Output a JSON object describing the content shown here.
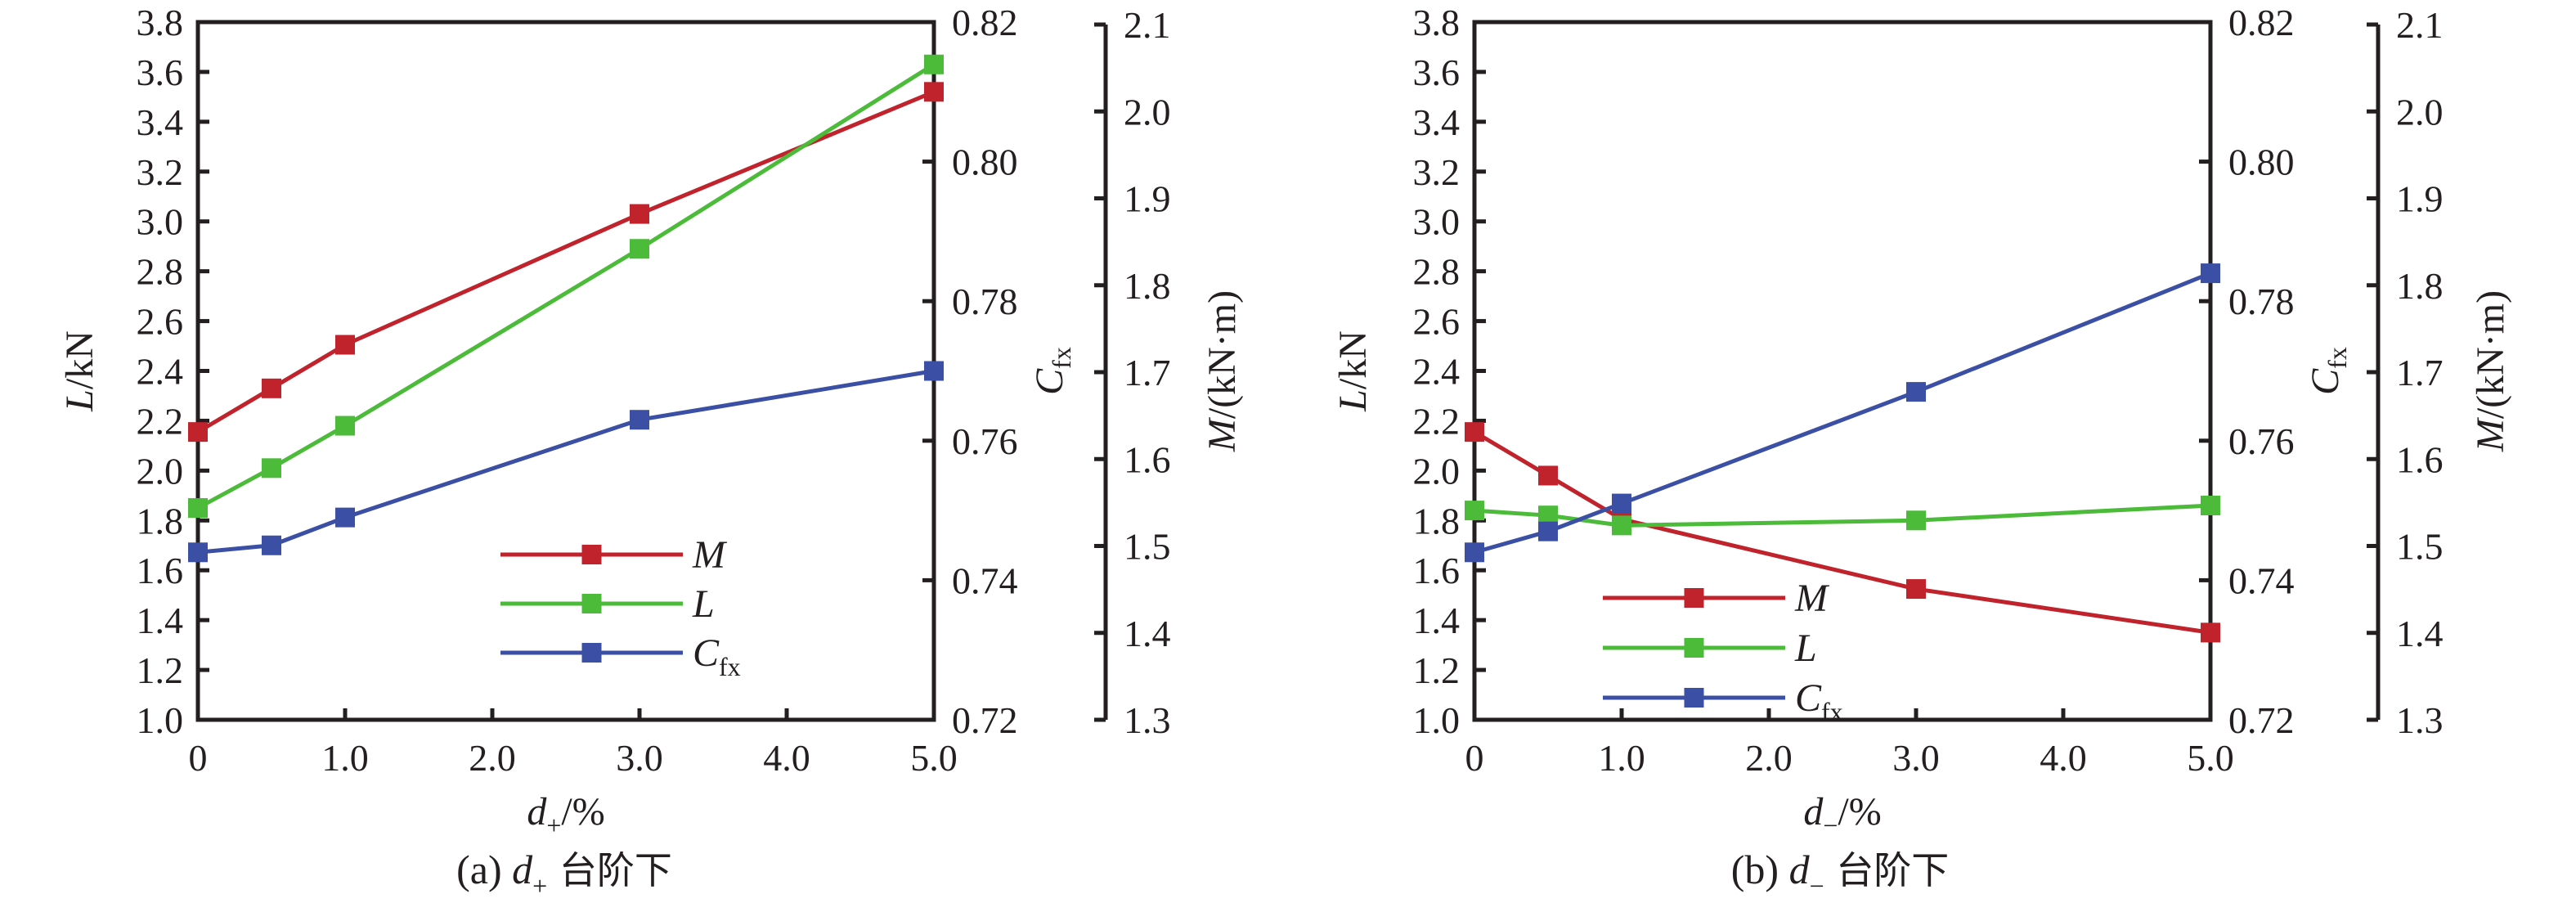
{
  "colors": {
    "M": "#c0232b",
    "L": "#4cbb3a",
    "Cfx": "#3b4fa5",
    "axis": "#231f20"
  },
  "chart_data": [
    {
      "type": "line",
      "panel": "a",
      "caption": {
        "prefix": "(a) ",
        "var": "d",
        "sub": "+",
        "suffix": " 台阶下"
      },
      "xlabel": {
        "var": "d",
        "sub": "+",
        "suffix": "/%"
      },
      "x_ticks": [
        "0",
        "1.0",
        "2.0",
        "3.0",
        "4.0",
        "5.0"
      ],
      "xlim": [
        0,
        5
      ],
      "x": [
        0,
        0.5,
        1.0,
        3.0,
        5.0
      ],
      "axes": {
        "L": {
          "label_var": "L",
          "label_suffix": "/kN",
          "ylim": [
            1.0,
            3.8
          ],
          "ticks": [
            "1.0",
            "1.2",
            "1.4",
            "1.6",
            "1.8",
            "2.0",
            "2.2",
            "2.4",
            "2.6",
            "2.8",
            "3.0",
            "3.2",
            "3.4",
            "3.6",
            "3.8"
          ]
        },
        "Cfx": {
          "label_var": "C",
          "label_sub": "fx",
          "ylim": [
            0.72,
            0.82
          ],
          "ticks": [
            "0.72",
            "0.74",
            "0.76",
            "0.78",
            "0.80",
            "0.82"
          ]
        },
        "M": {
          "label_var": "M",
          "label_suffix": "/(kN·m)",
          "ylim": [
            1.3,
            2.1
          ],
          "ticks": [
            "1.3",
            "1.4",
            "1.5",
            "1.6",
            "1.7",
            "1.8",
            "1.9",
            "2.0",
            "2.1"
          ]
        }
      },
      "series": [
        {
          "name": "M",
          "axis": "M",
          "values": [
            1.63,
            1.68,
            1.73,
            1.88,
            2.02
          ]
        },
        {
          "name": "L",
          "axis": "L",
          "values": [
            1.85,
            2.01,
            2.18,
            2.89,
            3.63
          ]
        },
        {
          "name": "Cfx",
          "axis": "Cfx",
          "values": [
            0.744,
            0.745,
            0.749,
            0.763,
            0.77
          ]
        }
      ],
      "legend": [
        {
          "series": "M",
          "var": "M",
          "sub": ""
        },
        {
          "series": "L",
          "var": "L",
          "sub": ""
        },
        {
          "series": "Cfx",
          "var": "C",
          "sub": "fx"
        }
      ],
      "legend_position": "lower-center"
    },
    {
      "type": "line",
      "panel": "b",
      "caption": {
        "prefix": "(b) ",
        "var": "d",
        "sub": "−",
        "suffix": " 台阶下"
      },
      "xlabel": {
        "var": "d",
        "sub": "−",
        "suffix": "/%"
      },
      "x_ticks": [
        "0",
        "1.0",
        "2.0",
        "3.0",
        "4.0",
        "5.0"
      ],
      "xlim": [
        0,
        5
      ],
      "x": [
        0,
        0.5,
        1.0,
        3.0,
        5.0
      ],
      "axes": {
        "L": {
          "label_var": "L",
          "label_suffix": "/kN",
          "ylim": [
            1.0,
            3.8
          ],
          "ticks": [
            "1.0",
            "1.2",
            "1.4",
            "1.6",
            "1.8",
            "2.0",
            "2.2",
            "2.4",
            "2.6",
            "2.8",
            "3.0",
            "3.2",
            "3.4",
            "3.6",
            "3.8"
          ]
        },
        "Cfx": {
          "label_var": "C",
          "label_sub": "fx",
          "ylim": [
            0.72,
            0.82
          ],
          "ticks": [
            "0.72",
            "0.74",
            "0.76",
            "0.78",
            "0.80",
            "0.82"
          ]
        },
        "M": {
          "label_var": "M",
          "label_suffix": "/(kN·m)",
          "ylim": [
            1.3,
            2.1
          ],
          "ticks": [
            "1.3",
            "1.4",
            "1.5",
            "1.6",
            "1.7",
            "1.8",
            "1.9",
            "2.0",
            "2.1"
          ]
        }
      },
      "series": [
        {
          "name": "M",
          "axis": "M",
          "values": [
            1.63,
            1.58,
            1.53,
            1.45,
            1.4
          ]
        },
        {
          "name": "L",
          "axis": "L",
          "values": [
            1.84,
            1.82,
            1.78,
            1.8,
            1.86
          ]
        },
        {
          "name": "Cfx",
          "axis": "Cfx",
          "values": [
            0.744,
            0.747,
            0.751,
            0.767,
            0.784
          ]
        }
      ],
      "legend": [
        {
          "series": "M",
          "var": "M",
          "sub": ""
        },
        {
          "series": "L",
          "var": "L",
          "sub": ""
        },
        {
          "series": "Cfx",
          "var": "C",
          "sub": "fx"
        }
      ],
      "legend_position": "lower-left"
    }
  ]
}
